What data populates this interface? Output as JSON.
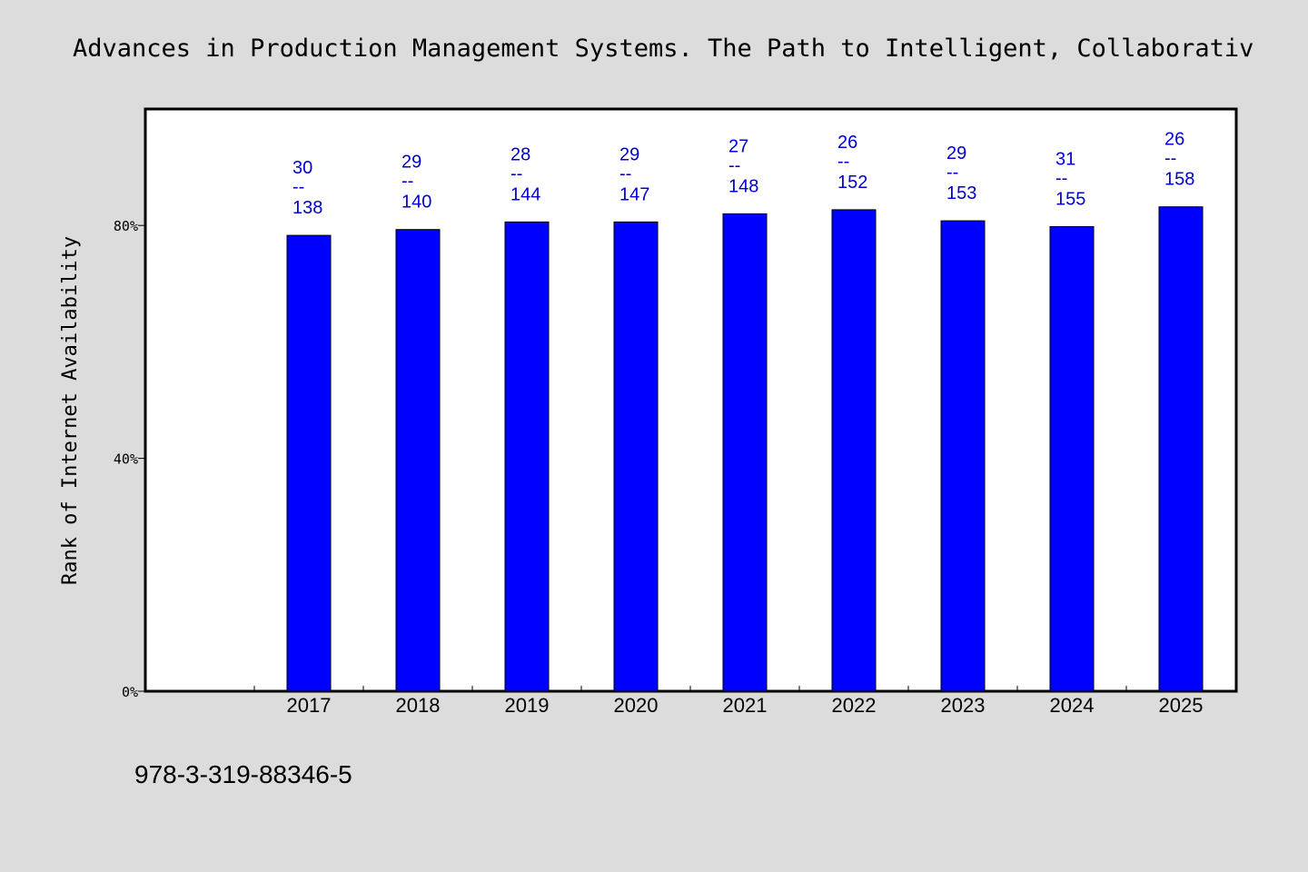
{
  "chart_data": {
    "type": "bar",
    "title": "Advances in Production Management Systems. The Path to Intelligent, Collaborativ",
    "ylabel": "Rank of Internet Availability",
    "xlabel": "",
    "categories": [
      "2017",
      "2018",
      "2019",
      "2020",
      "2021",
      "2022",
      "2023",
      "2024",
      "2025"
    ],
    "values": [
      78.3,
      79.3,
      80.6,
      80.6,
      82.0,
      82.7,
      80.8,
      79.8,
      83.2
    ],
    "numerators": [
      30,
      29,
      28,
      29,
      27,
      26,
      29,
      31,
      26
    ],
    "denominators": [
      138,
      140,
      144,
      147,
      148,
      152,
      153,
      155,
      158
    ],
    "data_labels": [
      {
        "top": "30",
        "sep": "--",
        "bottom": "138"
      },
      {
        "top": "29",
        "sep": "--",
        "bottom": "140"
      },
      {
        "top": "28",
        "sep": "--",
        "bottom": "144"
      },
      {
        "top": "29",
        "sep": "--",
        "bottom": "147"
      },
      {
        "top": "27",
        "sep": "--",
        "bottom": "148"
      },
      {
        "top": "26",
        "sep": "--",
        "bottom": "152"
      },
      {
        "top": "29",
        "sep": "--",
        "bottom": "153"
      },
      {
        "top": "31",
        "sep": "--",
        "bottom": "155"
      },
      {
        "top": "26",
        "sep": "--",
        "bottom": "158"
      }
    ],
    "ylim": [
      0,
      100
    ],
    "yticks": [
      0,
      40,
      80
    ],
    "ytick_labels": [
      "0%",
      "40%",
      "80%"
    ],
    "grid": false,
    "bar_color": "#0000ff",
    "label_color": "#0000cc"
  },
  "footer": {
    "isbn": "978-3-319-88346-5"
  }
}
